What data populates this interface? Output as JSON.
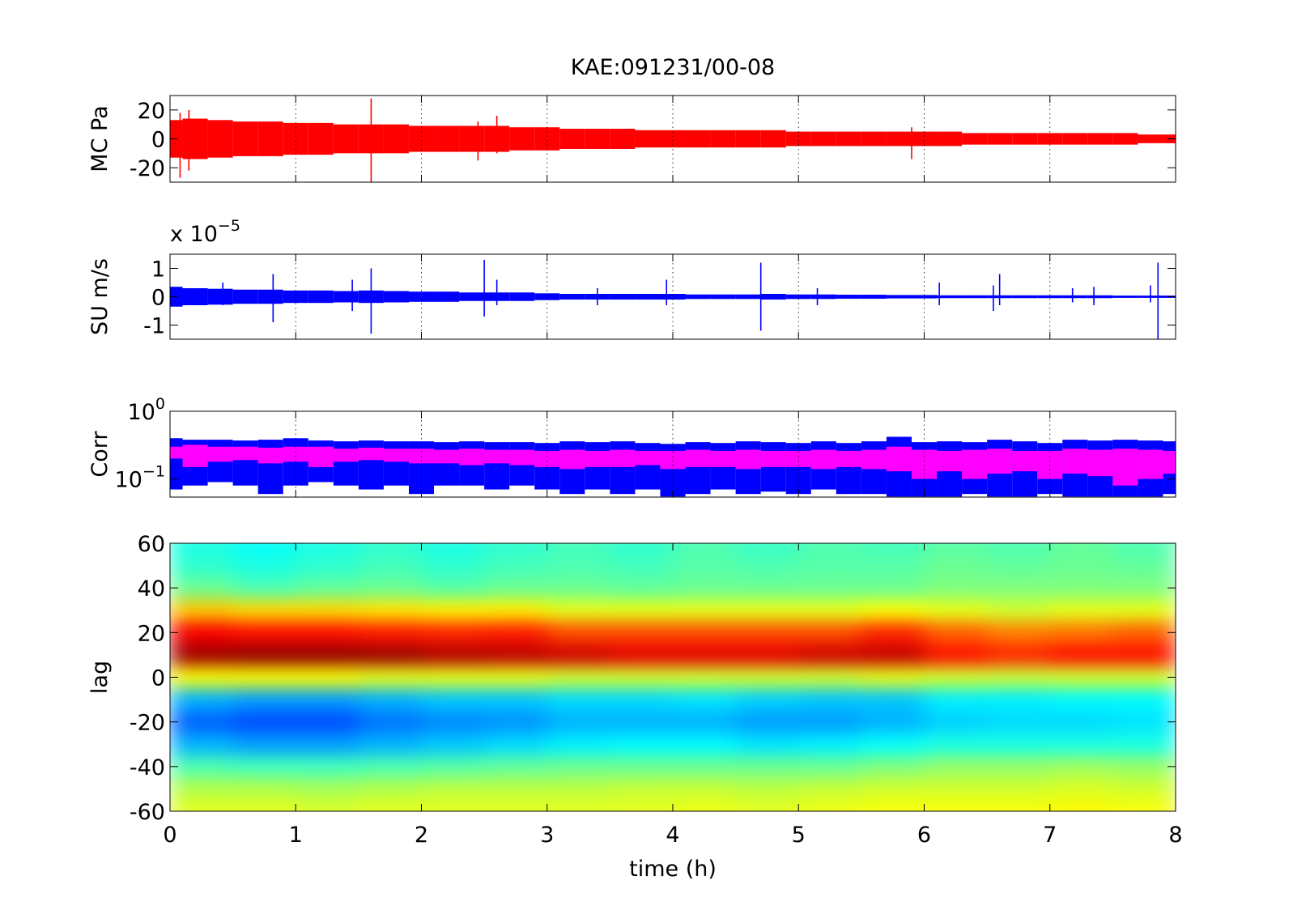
{
  "chart_data": [
    {
      "type": "band",
      "title": "KAE:091231/00-08",
      "ylabel": "MC Pa",
      "xlim": [
        0,
        8
      ],
      "xticks": [
        0,
        1,
        2,
        3,
        4,
        5,
        6,
        7,
        8
      ],
      "show_x_tick_labels": false,
      "grid": "x",
      "ylim": [
        -30,
        30
      ],
      "yticks": [
        -20,
        0,
        20
      ],
      "series": [
        {
          "style": "envelope",
          "color": "#ff0000",
          "x": [
            0,
            0.2,
            0.4,
            0.6,
            0.8,
            1,
            1.2,
            1.4,
            1.6,
            1.8,
            2,
            2.2,
            2.4,
            2.6,
            2.8,
            3,
            3.2,
            3.4,
            3.6,
            3.8,
            4,
            4.2,
            4.4,
            4.6,
            4.8,
            5,
            5.2,
            5.4,
            5.6,
            5.8,
            6,
            6.2,
            6.4,
            6.6,
            6.8,
            7,
            7.2,
            7.4,
            7.6,
            7.8,
            8
          ],
          "upper": [
            13,
            14,
            13,
            12,
            12,
            11,
            11,
            10,
            10,
            10,
            9,
            9,
            9,
            9,
            8,
            8,
            7,
            7,
            7,
            6,
            6,
            6,
            6,
            6,
            6,
            5,
            5,
            5,
            5,
            5,
            5,
            5,
            4,
            4,
            4,
            4,
            4,
            4,
            4,
            3,
            3
          ],
          "lower": [
            -13,
            -14,
            -13,
            -12,
            -12,
            -11,
            -11,
            -10,
            -10,
            -10,
            -9,
            -9,
            -9,
            -9,
            -8,
            -8,
            -7,
            -7,
            -7,
            -6,
            -6,
            -6,
            -6,
            -6,
            -6,
            -5,
            -5,
            -5,
            -5,
            -5,
            -5,
            -5,
            -4,
            -4,
            -4,
            -4,
            -4,
            -4,
            -4,
            -3,
            -3
          ]
        },
        {
          "style": "spikes",
          "color": "#ff0000",
          "x": [
            0.08,
            0.15,
            1.6,
            2.45,
            2.6,
            5.9
          ],
          "upper": [
            18,
            20,
            28,
            12,
            16,
            8
          ],
          "lower": [
            -27,
            -22,
            -30,
            -15,
            -10,
            -14
          ]
        }
      ]
    },
    {
      "type": "band",
      "ylabel": "SU m/s",
      "y_exponent_label": "x 10^−5",
      "xlim": [
        0,
        8
      ],
      "xticks": [
        0,
        1,
        2,
        3,
        4,
        5,
        6,
        7,
        8
      ],
      "show_x_tick_labels": false,
      "grid": "x",
      "ylim": [
        -1.5,
        1.5
      ],
      "yticks": [
        -1,
        0,
        1
      ],
      "series": [
        {
          "style": "envelope",
          "color": "#0000ff",
          "x": [
            0,
            0.2,
            0.4,
            0.6,
            0.8,
            1,
            1.2,
            1.4,
            1.6,
            1.8,
            2,
            2.2,
            2.4,
            2.6,
            2.8,
            3,
            3.2,
            3.4,
            3.6,
            3.8,
            4,
            4.2,
            4.4,
            4.6,
            4.8,
            5,
            5.2,
            5.4,
            5.6,
            5.8,
            6,
            6.2,
            6.4,
            6.6,
            6.8,
            7,
            7.2,
            7.4,
            7.6,
            7.8,
            8
          ],
          "upper": [
            0.35,
            0.3,
            0.28,
            0.25,
            0.25,
            0.22,
            0.22,
            0.2,
            0.22,
            0.2,
            0.18,
            0.18,
            0.15,
            0.15,
            0.15,
            0.12,
            0.1,
            0.1,
            0.1,
            0.1,
            0.1,
            0.08,
            0.08,
            0.08,
            0.1,
            0.08,
            0.08,
            0.07,
            0.07,
            0.06,
            0.06,
            0.05,
            0.05,
            0.05,
            0.05,
            0.05,
            0.05,
            0.05,
            0.04,
            0.04,
            0.04
          ],
          "lower": [
            -0.35,
            -0.3,
            -0.28,
            -0.25,
            -0.25,
            -0.22,
            -0.22,
            -0.2,
            -0.22,
            -0.2,
            -0.18,
            -0.18,
            -0.15,
            -0.15,
            -0.15,
            -0.12,
            -0.1,
            -0.1,
            -0.1,
            -0.1,
            -0.1,
            -0.08,
            -0.08,
            -0.08,
            -0.1,
            -0.08,
            -0.08,
            -0.07,
            -0.07,
            -0.06,
            -0.06,
            -0.05,
            -0.05,
            -0.05,
            -0.05,
            -0.05,
            -0.05,
            -0.05,
            -0.04,
            -0.04,
            -0.04
          ]
        },
        {
          "style": "spikes",
          "color": "#0000ff",
          "x": [
            0.42,
            0.82,
            1.45,
            1.6,
            2.5,
            2.6,
            3.4,
            3.95,
            4.7,
            5.15,
            6.12,
            6.55,
            6.6,
            7.18,
            7.35,
            7.8,
            7.86
          ],
          "upper": [
            0.5,
            0.8,
            0.6,
            1.0,
            1.3,
            0.6,
            0.3,
            0.6,
            1.2,
            0.3,
            0.5,
            0.4,
            0.8,
            0.3,
            0.35,
            0.4,
            1.2
          ],
          "lower": [
            -0.3,
            -0.9,
            -0.5,
            -1.3,
            -0.7,
            -0.3,
            -0.3,
            -0.3,
            -1.2,
            -0.3,
            -0.3,
            -0.5,
            -0.3,
            -0.2,
            -0.3,
            -0.2,
            -1.5
          ]
        }
      ]
    },
    {
      "type": "band",
      "ylabel": "Corr",
      "yscale": "log",
      "xlim": [
        0,
        8
      ],
      "xticks": [
        0,
        1,
        2,
        3,
        4,
        5,
        6,
        7,
        8
      ],
      "show_x_tick_labels": false,
      "grid": "x",
      "ylim": [
        0.054,
        1
      ],
      "yticks": [
        {
          "value": 1,
          "label": "10^0"
        },
        {
          "value": 0.1,
          "label": "10^−1"
        }
      ],
      "series": [
        {
          "style": "envelope",
          "color": "#0000ff",
          "x": [
            0,
            0.2,
            0.4,
            0.6,
            0.8,
            1,
            1.2,
            1.4,
            1.6,
            1.8,
            2,
            2.2,
            2.4,
            2.6,
            2.8,
            3,
            3.2,
            3.4,
            3.6,
            3.8,
            4,
            4.2,
            4.4,
            4.6,
            4.8,
            5,
            5.2,
            5.4,
            5.6,
            5.8,
            6,
            6.2,
            6.4,
            6.6,
            6.8,
            7,
            7.2,
            7.4,
            7.6,
            7.8,
            8
          ],
          "upper": [
            0.4,
            0.38,
            0.38,
            0.37,
            0.38,
            0.4,
            0.37,
            0.36,
            0.37,
            0.36,
            0.36,
            0.35,
            0.36,
            0.35,
            0.35,
            0.34,
            0.36,
            0.35,
            0.36,
            0.34,
            0.33,
            0.35,
            0.34,
            0.36,
            0.35,
            0.34,
            0.36,
            0.34,
            0.36,
            0.42,
            0.35,
            0.36,
            0.35,
            0.38,
            0.36,
            0.34,
            0.38,
            0.37,
            0.38,
            0.37,
            0.36
          ],
          "lower": [
            0.07,
            0.08,
            0.09,
            0.08,
            0.06,
            0.08,
            0.09,
            0.08,
            0.07,
            0.08,
            0.06,
            0.08,
            0.08,
            0.07,
            0.08,
            0.07,
            0.06,
            0.07,
            0.06,
            0.07,
            0.055,
            0.06,
            0.07,
            0.06,
            0.065,
            0.06,
            0.07,
            0.06,
            0.06,
            0.055,
            0.055,
            0.055,
            0.06,
            0.055,
            0.055,
            0.06,
            0.055,
            0.055,
            0.055,
            0.055,
            0.06
          ]
        },
        {
          "style": "envelope",
          "color": "#ff00ff",
          "x": [
            0,
            0.2,
            0.4,
            0.6,
            0.8,
            1,
            1.2,
            1.4,
            1.6,
            1.8,
            2,
            2.2,
            2.4,
            2.6,
            2.8,
            3,
            3.2,
            3.4,
            3.6,
            3.8,
            4,
            4.2,
            4.4,
            4.6,
            4.8,
            5,
            5.2,
            5.4,
            5.6,
            5.8,
            6,
            6.2,
            6.4,
            6.6,
            6.8,
            7,
            7.2,
            7.4,
            7.6,
            7.8,
            8
          ],
          "upper": [
            0.3,
            0.32,
            0.3,
            0.3,
            0.29,
            0.3,
            0.3,
            0.28,
            0.29,
            0.28,
            0.28,
            0.27,
            0.28,
            0.27,
            0.27,
            0.26,
            0.27,
            0.26,
            0.27,
            0.26,
            0.26,
            0.27,
            0.26,
            0.27,
            0.26,
            0.26,
            0.27,
            0.26,
            0.27,
            0.3,
            0.27,
            0.26,
            0.27,
            0.28,
            0.26,
            0.26,
            0.28,
            0.27,
            0.28,
            0.27,
            0.26
          ],
          "lower": [
            0.2,
            0.15,
            0.18,
            0.19,
            0.17,
            0.18,
            0.15,
            0.18,
            0.19,
            0.18,
            0.17,
            0.17,
            0.16,
            0.17,
            0.16,
            0.15,
            0.14,
            0.15,
            0.15,
            0.16,
            0.14,
            0.15,
            0.15,
            0.14,
            0.15,
            0.15,
            0.14,
            0.15,
            0.14,
            0.13,
            0.1,
            0.13,
            0.1,
            0.12,
            0.13,
            0.1,
            0.12,
            0.11,
            0.08,
            0.1,
            0.12
          ]
        }
      ]
    },
    {
      "type": "heatmap",
      "ylabel": "lag",
      "xlabel": "time (h)",
      "colormap": "jet",
      "clim": [
        0,
        1
      ],
      "xlim": [
        0,
        8
      ],
      "xticks": [
        0,
        1,
        2,
        3,
        4,
        5,
        6,
        7,
        8
      ],
      "show_x_tick_labels": true,
      "ylim": [
        -60,
        60
      ],
      "yticks": [
        -60,
        -40,
        -20,
        0,
        20,
        40,
        60
      ],
      "x": [
        0.25,
        0.75,
        1.25,
        1.75,
        2.25,
        2.75,
        3.25,
        3.75,
        4.25,
        4.75,
        5.25,
        5.75,
        6.25,
        6.75,
        7.25,
        7.75
      ],
      "y": [
        60,
        50,
        40,
        30,
        20,
        10,
        0,
        -10,
        -20,
        -30,
        -40,
        -50,
        -60
      ],
      "z": [
        [
          0.4,
          0.38,
          0.4,
          0.42,
          0.4,
          0.42,
          0.44,
          0.42,
          0.45,
          0.43,
          0.45,
          0.44,
          0.46,
          0.45,
          0.47,
          0.45
        ],
        [
          0.42,
          0.4,
          0.42,
          0.44,
          0.42,
          0.44,
          0.45,
          0.44,
          0.46,
          0.45,
          0.46,
          0.46,
          0.48,
          0.47,
          0.48,
          0.47
        ],
        [
          0.48,
          0.45,
          0.47,
          0.48,
          0.46,
          0.48,
          0.48,
          0.47,
          0.48,
          0.48,
          0.48,
          0.48,
          0.5,
          0.5,
          0.5,
          0.5
        ],
        [
          0.68,
          0.66,
          0.66,
          0.65,
          0.64,
          0.64,
          0.6,
          0.6,
          0.6,
          0.6,
          0.6,
          0.62,
          0.6,
          0.58,
          0.6,
          0.6
        ],
        [
          0.88,
          0.86,
          0.86,
          0.85,
          0.84,
          0.85,
          0.8,
          0.8,
          0.8,
          0.8,
          0.8,
          0.84,
          0.78,
          0.75,
          0.76,
          0.78
        ],
        [
          0.97,
          0.98,
          0.98,
          0.97,
          0.95,
          0.94,
          0.92,
          0.9,
          0.9,
          0.9,
          0.92,
          0.93,
          0.86,
          0.84,
          0.86,
          0.86
        ],
        [
          0.62,
          0.62,
          0.62,
          0.6,
          0.6,
          0.6,
          0.58,
          0.58,
          0.58,
          0.58,
          0.58,
          0.6,
          0.58,
          0.57,
          0.58,
          0.58
        ],
        [
          0.3,
          0.28,
          0.28,
          0.3,
          0.32,
          0.32,
          0.34,
          0.34,
          0.35,
          0.33,
          0.32,
          0.32,
          0.36,
          0.36,
          0.37,
          0.37
        ],
        [
          0.22,
          0.2,
          0.2,
          0.24,
          0.26,
          0.27,
          0.3,
          0.3,
          0.3,
          0.28,
          0.28,
          0.3,
          0.33,
          0.34,
          0.34,
          0.35
        ],
        [
          0.3,
          0.28,
          0.28,
          0.3,
          0.32,
          0.34,
          0.36,
          0.37,
          0.37,
          0.35,
          0.36,
          0.38,
          0.4,
          0.4,
          0.4,
          0.4
        ],
        [
          0.45,
          0.44,
          0.44,
          0.45,
          0.46,
          0.47,
          0.48,
          0.48,
          0.48,
          0.48,
          0.48,
          0.5,
          0.52,
          0.52,
          0.53,
          0.52
        ],
        [
          0.55,
          0.55,
          0.54,
          0.55,
          0.56,
          0.56,
          0.56,
          0.57,
          0.57,
          0.56,
          0.57,
          0.58,
          0.58,
          0.58,
          0.59,
          0.58
        ],
        [
          0.6,
          0.6,
          0.59,
          0.6,
          0.6,
          0.6,
          0.6,
          0.6,
          0.61,
          0.6,
          0.61,
          0.62,
          0.62,
          0.62,
          0.63,
          0.62
        ]
      ]
    }
  ]
}
